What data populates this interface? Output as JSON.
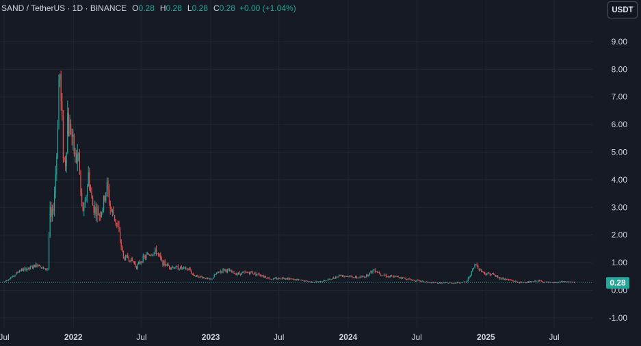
{
  "header": {
    "symbol": "SAND / TetherUS · 1D · BINANCE",
    "open_label": "O",
    "open": "0.28",
    "high_label": "H",
    "high": "0.28",
    "low_label": "L",
    "low": "0.28",
    "close_label": "C",
    "close": "0.28",
    "change": "+0.00 (+1.04%)"
  },
  "currency_button": "USDT",
  "price_badge": "0.28",
  "colors": {
    "background": "#161a25",
    "grid": "#232733",
    "up": "#26a69a",
    "down": "#ef5350",
    "axis_text": "#d1d4dc"
  },
  "chart_data": {
    "type": "candlestick",
    "symbol": "SAND / TetherUS",
    "interval": "1D",
    "exchange": "BINANCE",
    "y_ticks": [
      "9.00",
      "8.00",
      "7.00",
      "6.00",
      "5.00",
      "4.00",
      "3.00",
      "2.00",
      "1.00",
      "0.00",
      "-1.00"
    ],
    "x_ticks": [
      "Jul",
      "2022",
      "Jul",
      "2023",
      "Jul",
      "2024",
      "Jul",
      "2025",
      "Jul"
    ],
    "last_price": 0.28,
    "grid": true,
    "approx_series": [
      {
        "date": "2021-07-01",
        "value": 0.32
      },
      {
        "date": "2021-07-25",
        "value": 0.5
      },
      {
        "date": "2021-08-10",
        "value": 0.72
      },
      {
        "date": "2021-09-05",
        "value": 0.78
      },
      {
        "date": "2021-10-01",
        "value": 0.95
      },
      {
        "date": "2021-10-15",
        "value": 0.75
      },
      {
        "date": "2021-10-26",
        "value": 0.8
      },
      {
        "date": "2021-10-30",
        "value": 2.9
      },
      {
        "date": "2021-11-04",
        "value": 2.5
      },
      {
        "date": "2021-11-10",
        "value": 3.2
      },
      {
        "date": "2021-11-18",
        "value": 5.0
      },
      {
        "date": "2021-11-25",
        "value": 8.4
      },
      {
        "date": "2021-11-28",
        "value": 7.0
      },
      {
        "date": "2021-12-02",
        "value": 6.0
      },
      {
        "date": "2021-12-06",
        "value": 4.8
      },
      {
        "date": "2021-12-10",
        "value": 4.5
      },
      {
        "date": "2021-12-14",
        "value": 5.4
      },
      {
        "date": "2021-12-17",
        "value": 6.5
      },
      {
        "date": "2021-12-20",
        "value": 5.7
      },
      {
        "date": "2021-12-25",
        "value": 6.0
      },
      {
        "date": "2021-12-31",
        "value": 5.2
      },
      {
        "date": "2022-01-08",
        "value": 4.7
      },
      {
        "date": "2022-01-15",
        "value": 4.9
      },
      {
        "date": "2022-01-22",
        "value": 3.1
      },
      {
        "date": "2022-01-30",
        "value": 2.8
      },
      {
        "date": "2022-02-05",
        "value": 3.6
      },
      {
        "date": "2022-02-10",
        "value": 4.2
      },
      {
        "date": "2022-02-20",
        "value": 3.1
      },
      {
        "date": "2022-03-01",
        "value": 2.9
      },
      {
        "date": "2022-03-10",
        "value": 2.75
      },
      {
        "date": "2022-03-20",
        "value": 3.0
      },
      {
        "date": "2022-03-31",
        "value": 3.8
      },
      {
        "date": "2022-04-10",
        "value": 2.9
      },
      {
        "date": "2022-04-20",
        "value": 2.7
      },
      {
        "date": "2022-04-30",
        "value": 2.2
      },
      {
        "date": "2022-05-08",
        "value": 1.6
      },
      {
        "date": "2022-05-14",
        "value": 1.15
      },
      {
        "date": "2022-05-25",
        "value": 1.2
      },
      {
        "date": "2022-06-10",
        "value": 1.0
      },
      {
        "date": "2022-06-18",
        "value": 0.85
      },
      {
        "date": "2022-07-01",
        "value": 1.1
      },
      {
        "date": "2022-07-20",
        "value": 1.3
      },
      {
        "date": "2022-08-10",
        "value": 1.4
      },
      {
        "date": "2022-08-25",
        "value": 1.0
      },
      {
        "date": "2022-09-15",
        "value": 0.85
      },
      {
        "date": "2022-10-15",
        "value": 0.8
      },
      {
        "date": "2022-11-05",
        "value": 0.75
      },
      {
        "date": "2022-11-15",
        "value": 0.55
      },
      {
        "date": "2022-12-15",
        "value": 0.45
      },
      {
        "date": "2023-01-01",
        "value": 0.38
      },
      {
        "date": "2023-01-15",
        "value": 0.6
      },
      {
        "date": "2023-02-05",
        "value": 0.75
      },
      {
        "date": "2023-03-10",
        "value": 0.6
      },
      {
        "date": "2023-04-15",
        "value": 0.65
      },
      {
        "date": "2023-05-15",
        "value": 0.55
      },
      {
        "date": "2023-06-10",
        "value": 0.4
      },
      {
        "date": "2023-07-15",
        "value": 0.45
      },
      {
        "date": "2023-08-15",
        "value": 0.38
      },
      {
        "date": "2023-09-15",
        "value": 0.32
      },
      {
        "date": "2023-10-15",
        "value": 0.3
      },
      {
        "date": "2023-11-15",
        "value": 0.4
      },
      {
        "date": "2023-12-10",
        "value": 0.55
      },
      {
        "date": "2024-01-05",
        "value": 0.5
      },
      {
        "date": "2024-01-25",
        "value": 0.45
      },
      {
        "date": "2024-02-15",
        "value": 0.5
      },
      {
        "date": "2024-03-10",
        "value": 0.75
      },
      {
        "date": "2024-03-25",
        "value": 0.62
      },
      {
        "date": "2024-04-15",
        "value": 0.5
      },
      {
        "date": "2024-05-15",
        "value": 0.48
      },
      {
        "date": "2024-06-15",
        "value": 0.38
      },
      {
        "date": "2024-07-10",
        "value": 0.33
      },
      {
        "date": "2024-08-10",
        "value": 0.27
      },
      {
        "date": "2024-09-15",
        "value": 0.26
      },
      {
        "date": "2024-10-15",
        "value": 0.27
      },
      {
        "date": "2024-11-10",
        "value": 0.3
      },
      {
        "date": "2024-11-25",
        "value": 0.7
      },
      {
        "date": "2024-12-05",
        "value": 0.95
      },
      {
        "date": "2024-12-15",
        "value": 0.75
      },
      {
        "date": "2024-12-30",
        "value": 0.6
      },
      {
        "date": "2025-01-15",
        "value": 0.6
      },
      {
        "date": "2025-02-05",
        "value": 0.45
      },
      {
        "date": "2025-03-01",
        "value": 0.38
      },
      {
        "date": "2025-04-01",
        "value": 0.28
      },
      {
        "date": "2025-05-01",
        "value": 0.3
      },
      {
        "date": "2025-05-20",
        "value": 0.34
      },
      {
        "date": "2025-06-20",
        "value": 0.27
      },
      {
        "date": "2025-07-10",
        "value": 0.28
      },
      {
        "date": "2025-07-25",
        "value": 0.32
      },
      {
        "date": "2025-08-10",
        "value": 0.3
      },
      {
        "date": "2025-08-25",
        "value": 0.28
      }
    ]
  }
}
